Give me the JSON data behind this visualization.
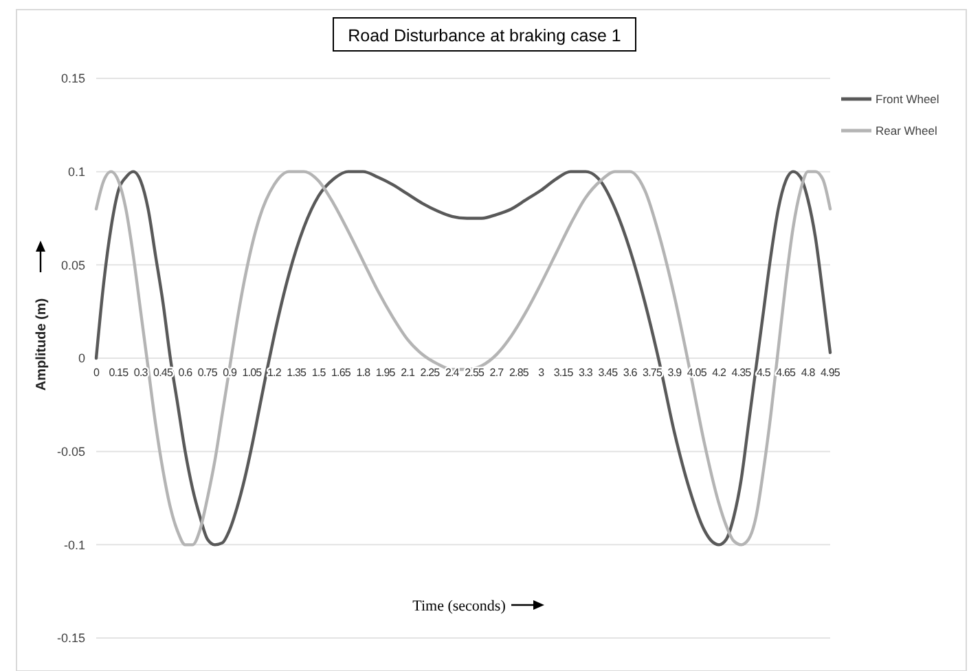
{
  "chart_data": {
    "type": "line",
    "title": "Road Disturbance at braking case 1",
    "xlabel": "Time (seconds)",
    "ylabel": "Amplitude (m)",
    "xlim": [
      0,
      4.95
    ],
    "xticks": [
      0,
      0.15,
      0.3,
      0.45,
      0.6,
      0.75,
      0.9,
      1.05,
      1.2,
      1.35,
      1.5,
      1.65,
      1.8,
      1.95,
      2.1,
      2.25,
      2.4,
      2.55,
      2.7,
      2.85,
      3,
      3.15,
      3.3,
      3.45,
      3.6,
      3.75,
      3.9,
      4.05,
      4.2,
      4.35,
      4.5,
      4.65,
      4.8,
      4.95
    ],
    "ylim": [
      -0.15,
      0.15
    ],
    "yticks": [
      -0.15,
      -0.1,
      -0.05,
      0,
      0.05,
      0.1,
      0.15
    ],
    "grid": "y",
    "legend": "top right",
    "marker": "none",
    "line_style": "solid",
    "series": [
      {
        "name": "Front Wheel",
        "color": "#595959",
        "x": [
          0,
          0.05,
          0.1,
          0.15,
          0.2,
          0.25,
          0.3,
          0.35,
          0.4,
          0.45,
          0.5,
          0.55,
          0.6,
          0.65,
          0.7,
          0.75,
          0.8,
          0.85,
          0.9,
          0.95,
          1.0,
          1.05,
          1.1,
          1.15,
          1.2,
          1.3,
          1.4,
          1.5,
          1.6,
          1.7,
          1.8,
          1.9,
          2.0,
          2.1,
          2.2,
          2.3,
          2.4,
          2.5,
          2.6,
          2.7,
          2.8,
          2.9,
          3.0,
          3.1,
          3.2,
          3.3,
          3.4,
          3.5,
          3.6,
          3.7,
          3.8,
          3.9,
          4.0,
          4.1,
          4.15,
          4.2,
          4.25,
          4.3,
          4.35,
          4.4,
          4.45,
          4.5,
          4.55,
          4.6,
          4.65,
          4.7,
          4.75,
          4.8,
          4.85,
          4.9,
          4.95
        ],
        "values": [
          0,
          0.04,
          0.07,
          0.09,
          0.097,
          0.1,
          0.095,
          0.08,
          0.055,
          0.03,
          0,
          -0.025,
          -0.05,
          -0.07,
          -0.085,
          -0.097,
          -0.1,
          -0.099,
          -0.092,
          -0.08,
          -0.065,
          -0.047,
          -0.027,
          -0.007,
          0.012,
          0.045,
          0.07,
          0.087,
          0.096,
          0.1,
          0.1,
          0.097,
          0.093,
          0.088,
          0.083,
          0.079,
          0.076,
          0.075,
          0.075,
          0.077,
          0.08,
          0.085,
          0.09,
          0.096,
          0.1,
          0.1,
          0.095,
          0.08,
          0.058,
          0.03,
          -0.003,
          -0.04,
          -0.07,
          -0.092,
          -0.098,
          -0.1,
          -0.097,
          -0.085,
          -0.065,
          -0.035,
          -0.005,
          0.025,
          0.055,
          0.08,
          0.095,
          0.1,
          0.097,
          0.085,
          0.065,
          0.035,
          0.003
        ]
      },
      {
        "name": "Rear Wheel",
        "color": "#b4b4b4",
        "x": [
          0,
          0.05,
          0.1,
          0.15,
          0.2,
          0.25,
          0.3,
          0.35,
          0.4,
          0.45,
          0.5,
          0.55,
          0.6,
          0.65,
          0.7,
          0.75,
          0.8,
          0.85,
          0.9,
          0.95,
          1.0,
          1.1,
          1.2,
          1.3,
          1.4,
          1.5,
          1.6,
          1.7,
          1.8,
          1.9,
          2.0,
          2.1,
          2.2,
          2.3,
          2.4,
          2.5,
          2.6,
          2.7,
          2.8,
          2.9,
          3.0,
          3.1,
          3.2,
          3.3,
          3.4,
          3.5,
          3.6,
          3.7,
          3.8,
          3.9,
          4.0,
          4.1,
          4.2,
          4.25,
          4.3,
          4.35,
          4.4,
          4.45,
          4.5,
          4.55,
          4.6,
          4.65,
          4.7,
          4.75,
          4.8,
          4.85,
          4.9,
          4.95
        ],
        "values": [
          0.08,
          0.095,
          0.1,
          0.095,
          0.08,
          0.055,
          0.025,
          -0.005,
          -0.035,
          -0.06,
          -0.08,
          -0.093,
          -0.1,
          -0.1,
          -0.092,
          -0.075,
          -0.055,
          -0.03,
          -0.005,
          0.02,
          0.042,
          0.075,
          0.093,
          0.1,
          0.1,
          0.095,
          0.083,
          0.068,
          0.052,
          0.036,
          0.022,
          0.01,
          0.002,
          -0.003,
          -0.006,
          -0.006,
          -0.004,
          0.002,
          0.012,
          0.025,
          0.04,
          0.056,
          0.072,
          0.086,
          0.095,
          0.1,
          0.1,
          0.09,
          0.065,
          0.033,
          -0.005,
          -0.045,
          -0.078,
          -0.09,
          -0.098,
          -0.1,
          -0.097,
          -0.085,
          -0.06,
          -0.03,
          0.005,
          0.04,
          0.07,
          0.09,
          0.1,
          0.1,
          0.096,
          0.08
        ]
      }
    ]
  }
}
